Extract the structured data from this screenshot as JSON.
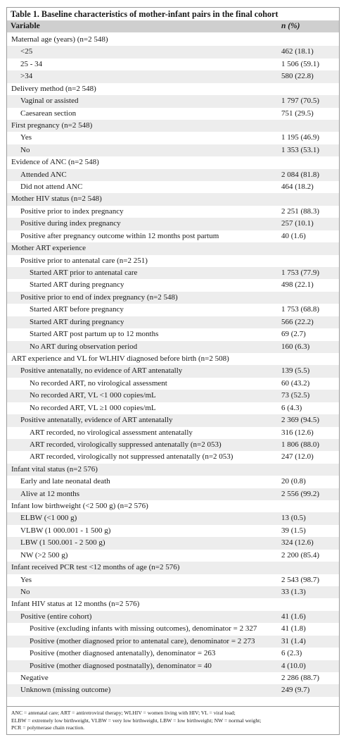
{
  "table": {
    "title": "Table 1. Baseline characteristics of mother-infant pairs in the final cohort",
    "col_variable": "Variable",
    "col_n": "n (%)",
    "rows": [
      {
        "label": "Maternal age (years) (n=2 548)",
        "value": "",
        "level": 0
      },
      {
        "label": "<25",
        "value": "462 (18.1)",
        "level": 1
      },
      {
        "label": "25 - 34",
        "value": "1 506 (59.1)",
        "level": 1
      },
      {
        "label": ">34",
        "value": "580 (22.8)",
        "level": 1
      },
      {
        "label": "Delivery method (n=2 548)",
        "value": "",
        "level": 0
      },
      {
        "label": "Vaginal or assisted",
        "value": "1 797 (70.5)",
        "level": 1
      },
      {
        "label": "Caesarean section",
        "value": "751 (29.5)",
        "level": 1
      },
      {
        "label": "First pregnancy (n=2 548)",
        "value": "",
        "level": 0
      },
      {
        "label": "Yes",
        "value": "1 195 (46.9)",
        "level": 1
      },
      {
        "label": "No",
        "value": "1 353 (53.1)",
        "level": 1
      },
      {
        "label": "Evidence of ANC (n=2 548)",
        "value": "",
        "level": 0
      },
      {
        "label": "Attended ANC",
        "value": "2 084 (81.8)",
        "level": 1
      },
      {
        "label": "Did not attend ANC",
        "value": "464 (18.2)",
        "level": 1
      },
      {
        "label": "Mother HIV status (n=2 548)",
        "value": "",
        "level": 0
      },
      {
        "label": "Positive prior to index pregnancy",
        "value": "2 251 (88.3)",
        "level": 1
      },
      {
        "label": "Positive during index pregnancy",
        "value": "257 (10.1)",
        "level": 1
      },
      {
        "label": "Positive after pregnancy outcome within 12 months post partum",
        "value": "40 (1.6)",
        "level": 1
      },
      {
        "label": "Mother ART experience",
        "value": "",
        "level": 0
      },
      {
        "label": "Positive prior to antenatal care (n=2 251)",
        "value": "",
        "level": 1
      },
      {
        "label": "Started ART prior to antenatal care",
        "value": "1 753 (77.9)",
        "level": 2
      },
      {
        "label": "Started ART during pregnancy",
        "value": "498 (22.1)",
        "level": 2
      },
      {
        "label": "Positive prior to end of index pregnancy (n=2 548)",
        "value": "",
        "level": 1
      },
      {
        "label": "Started ART before pregnancy",
        "value": "1 753 (68.8)",
        "level": 2
      },
      {
        "label": "Started ART during pregnancy",
        "value": "566 (22.2)",
        "level": 2
      },
      {
        "label": "Started ART post partum up to 12 months",
        "value": "69 (2.7)",
        "level": 2
      },
      {
        "label": "No ART during observation period",
        "value": "160 (6.3)",
        "level": 2
      },
      {
        "label": "ART experience and VL for WLHIV diagnosed before birth (n=2 508)",
        "value": "",
        "level": 0
      },
      {
        "label": "Positive antenatally, no evidence of ART antenatally",
        "value": "139 (5.5)",
        "level": 1
      },
      {
        "label": "No recorded ART, no virological assessment",
        "value": "60 (43.2)",
        "level": 2
      },
      {
        "label": "No recorded ART, VL <1 000 copies/mL",
        "value": "73 (52.5)",
        "level": 2
      },
      {
        "label": "No recorded ART, VL ≥1 000 copies/mL",
        "value": "6 (4.3)",
        "level": 2
      },
      {
        "label": "Positive antenatally, evidence of ART antenatally",
        "value": "2 369 (94.5)",
        "level": 1
      },
      {
        "label": "ART recorded, no virological assessment antenatally",
        "value": "316 (12.6)",
        "level": 2
      },
      {
        "label": "ART recorded, virologically suppressed antenatally (n=2 053)",
        "value": "1 806 (88.0)",
        "level": 2
      },
      {
        "label": "ART recorded, virologically not suppressed antenatally (n=2 053)",
        "value": "247 (12.0)",
        "level": 2
      },
      {
        "label": "Infant vital status (n=2 576)",
        "value": "",
        "level": 0
      },
      {
        "label": "Early and late neonatal death",
        "value": "20 (0.8)",
        "level": 1
      },
      {
        "label": "Alive at 12 months",
        "value": "2 556 (99.2)",
        "level": 1
      },
      {
        "label": "Infant low birthweight (<2 500 g) (n=2 576)",
        "value": "",
        "level": 0
      },
      {
        "label": "ELBW (<1 000 g)",
        "value": "13 (0.5)",
        "level": 1
      },
      {
        "label": "VLBW (1 000.001 - 1 500 g)",
        "value": "39 (1.5)",
        "level": 1
      },
      {
        "label": "LBW (1 500.001 - 2 500 g)",
        "value": "324 (12.6)",
        "level": 1
      },
      {
        "label": "NW (>2 500 g)",
        "value": "2 200 (85.4)",
        "level": 1
      },
      {
        "label": "Infant received PCR test <12 months of age (n=2 576)",
        "value": "",
        "level": 0
      },
      {
        "label": "Yes",
        "value": "2 543 (98.7)",
        "level": 1
      },
      {
        "label": "No",
        "value": "33 (1.3)",
        "level": 1
      },
      {
        "label": "Infant HIV status at 12 months (n=2 576)",
        "value": "",
        "level": 0
      },
      {
        "label": "Positive (entire cohort)",
        "value": "41 (1.6)",
        "level": 1
      },
      {
        "label": "Positive (excluding infants with missing outcomes), denominator = 2 327",
        "value": "41 (1.8)",
        "level": 2
      },
      {
        "label": "Positive (mother diagnosed prior to antenatal care), denominator = 2 273",
        "value": "31 (1.4)",
        "level": 2
      },
      {
        "label": "Positive (mother diagnosed antenatally), denominator = 263",
        "value": "6 (2.3)",
        "level": 2
      },
      {
        "label": "Positive (mother diagnosed postnatally), denominator = 40",
        "value": "4 (10.0)",
        "level": 2
      },
      {
        "label": "Negative",
        "value": "2 286 (88.7)",
        "level": 1
      },
      {
        "label": "Unknown (missing outcome)",
        "value": "249 (9.7)",
        "level": 1
      }
    ],
    "footnote": [
      "ANC = antenatal care; ART = antiretroviral therapy; WLHIV = women living with HIV; VL = viral load;",
      "ELBW = extremely low birthweight, VLBW = very low birthweight, LBW = low birthweight; NW = normal weight;",
      "PCR = polymerase chain reaction."
    ]
  }
}
